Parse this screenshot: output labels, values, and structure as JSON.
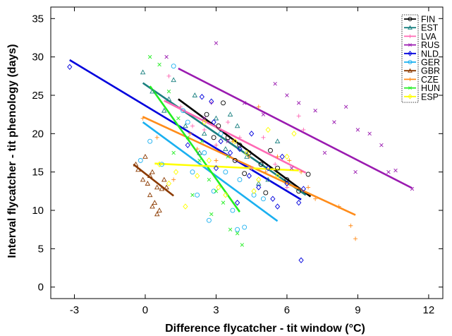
{
  "chart_data": {
    "type": "scatter",
    "xlabel": "Difference flycatcher - tit window (°C)",
    "ylabel": "Interval flycatcher - tit phenology (days)",
    "xlim": [
      -4,
      12.6
    ],
    "ylim": [
      -1.5,
      36.5
    ],
    "xticks": [
      "-3",
      "0",
      "3",
      "6",
      "9",
      "12"
    ],
    "yticks": [
      "0",
      "5",
      "10",
      "15",
      "20",
      "25",
      "30",
      "35"
    ],
    "grid": false,
    "legend_position": "top-right",
    "series": [
      {
        "name": "FIN",
        "color": "#000000",
        "marker": "circle",
        "line": [
          [
            1.4,
            24.5
          ],
          [
            7.0,
            11.8
          ]
        ],
        "points": [
          [
            2.6,
            22.5
          ],
          [
            3.1,
            21.0
          ],
          [
            3.5,
            19.5
          ],
          [
            4.0,
            18.5
          ],
          [
            4.4,
            17.5
          ],
          [
            4.9,
            16.0
          ],
          [
            5.3,
            17.8
          ],
          [
            5.6,
            15.5
          ],
          [
            6.0,
            14.0
          ],
          [
            6.5,
            12.5
          ],
          [
            6.9,
            14.7
          ],
          [
            3.3,
            24.0
          ],
          [
            4.2,
            14.8
          ],
          [
            5.1,
            12.3
          ],
          [
            2.9,
            19.5
          ],
          [
            3.8,
            16.5
          ]
        ]
      },
      {
        "name": "EST",
        "color": "#1a8080",
        "marker": "triangle",
        "line": [
          [
            -0.1,
            26.6
          ],
          [
            6.8,
            12.0
          ]
        ],
        "points": [
          [
            0.3,
            25.5
          ],
          [
            0.8,
            23.0
          ],
          [
            1.2,
            27.0
          ],
          [
            1.7,
            21.0
          ],
          [
            2.1,
            25.0
          ],
          [
            2.5,
            20.0
          ],
          [
            3.0,
            22.0
          ],
          [
            3.4,
            18.0
          ],
          [
            3.9,
            21.0
          ],
          [
            4.3,
            17.0
          ],
          [
            4.8,
            13.5
          ],
          [
            5.2,
            14.0
          ],
          [
            -0.1,
            28.0
          ],
          [
            1.0,
            24.5
          ],
          [
            3.6,
            22.5
          ],
          [
            2.3,
            17.5
          ],
          [
            5.6,
            19.0
          ]
        ]
      },
      {
        "name": "LVA",
        "color": "#ff69b4",
        "marker": "plus",
        "line": [
          [
            0.8,
            24.3
          ],
          [
            6.8,
            14.9
          ]
        ],
        "points": [
          [
            1.0,
            27.5
          ],
          [
            1.5,
            23.5
          ],
          [
            2.0,
            21.0
          ],
          [
            2.5,
            20.5
          ],
          [
            3.0,
            18.5
          ],
          [
            3.5,
            21.5
          ],
          [
            4.0,
            19.5
          ],
          [
            4.5,
            15.5
          ],
          [
            5.0,
            19.5
          ],
          [
            5.5,
            16.0
          ],
          [
            6.0,
            13.0
          ],
          [
            6.5,
            22.3
          ],
          [
            6.7,
            20.5
          ],
          [
            2.8,
            24.0
          ]
        ]
      },
      {
        "name": "RUS",
        "color": "#9a1ab0",
        "marker": "x",
        "line": [
          [
            1.4,
            28.5
          ],
          [
            11.3,
            12.9
          ]
        ],
        "points": [
          [
            0.9,
            30.0
          ],
          [
            2.5,
            22.0
          ],
          [
            3.0,
            31.8
          ],
          [
            3.5,
            19.0
          ],
          [
            4.2,
            24.0
          ],
          [
            5.0,
            22.5
          ],
          [
            5.5,
            26.5
          ],
          [
            6.0,
            25.0
          ],
          [
            6.5,
            24.0
          ],
          [
            7.2,
            23.0
          ],
          [
            8.0,
            21.5
          ],
          [
            8.5,
            23.5
          ],
          [
            9.0,
            20.5
          ],
          [
            9.5,
            20.0
          ],
          [
            10.0,
            18.5
          ],
          [
            10.3,
            15.0
          ],
          [
            10.6,
            15.2
          ],
          [
            11.3,
            12.8
          ],
          [
            7.6,
            17.5
          ],
          [
            6.2,
            15.5
          ],
          [
            8.9,
            15.0
          ]
        ]
      },
      {
        "name": "NLD",
        "color": "#0000dd",
        "marker": "diamond",
        "line": [
          [
            -3.2,
            29.6
          ],
          [
            6.6,
            11.4
          ]
        ],
        "points": [
          [
            -3.2,
            28.7
          ],
          [
            2.4,
            24.8
          ],
          [
            2.9,
            21.5
          ],
          [
            3.2,
            19.0
          ],
          [
            3.6,
            17.5
          ],
          [
            4.0,
            18.0
          ],
          [
            4.4,
            14.5
          ],
          [
            4.8,
            13.0
          ],
          [
            5.2,
            15.5
          ],
          [
            5.6,
            10.5
          ],
          [
            6.0,
            13.5
          ],
          [
            6.5,
            11.0
          ],
          [
            6.6,
            3.5
          ],
          [
            3.9,
            11.0
          ],
          [
            2.8,
            24.2
          ],
          [
            4.5,
            20.0
          ],
          [
            5.8,
            17.0
          ],
          [
            1.8,
            18.5
          ],
          [
            3.0,
            15.5
          ],
          [
            5.4,
            11.5
          ],
          [
            6.7,
            12.8
          ]
        ]
      },
      {
        "name": "GER",
        "color": "#1ab0f0",
        "marker": "circle",
        "line": [
          [
            -0.1,
            21.5
          ],
          [
            5.6,
            8.6
          ]
        ],
        "points": [
          [
            -0.2,
            16.5
          ],
          [
            0.2,
            19.0
          ],
          [
            0.7,
            16.0
          ],
          [
            1.2,
            28.8
          ],
          [
            1.6,
            23.0
          ],
          [
            2.0,
            15.0
          ],
          [
            2.5,
            17.5
          ],
          [
            2.9,
            12.5
          ],
          [
            3.4,
            15.0
          ],
          [
            3.7,
            10.0
          ],
          [
            4.0,
            14.0
          ],
          [
            4.2,
            7.8
          ],
          [
            4.6,
            12.0
          ],
          [
            5.0,
            11.5
          ],
          [
            2.7,
            8.7
          ],
          [
            3.9,
            7.5
          ],
          [
            2.2,
            12.0
          ],
          [
            1.8,
            21.5
          ],
          [
            3.2,
            20.0
          ]
        ]
      },
      {
        "name": "GBR",
        "color": "#8b3a00",
        "marker": "triangle",
        "line": [
          [
            -0.5,
            16.0
          ],
          [
            1.2,
            11.9
          ]
        ],
        "points": [
          [
            -0.4,
            16.0
          ],
          [
            -0.3,
            15.3
          ],
          [
            -0.1,
            14.0
          ],
          [
            0.0,
            17.0
          ],
          [
            0.1,
            13.5
          ],
          [
            0.2,
            12.0
          ],
          [
            0.3,
            15.0
          ],
          [
            0.4,
            11.0
          ],
          [
            0.5,
            13.0
          ],
          [
            0.6,
            10.0
          ],
          [
            0.7,
            12.8
          ],
          [
            0.8,
            14.0
          ],
          [
            0.9,
            13.0
          ],
          [
            0.3,
            10.5
          ],
          [
            0.5,
            9.5
          ],
          [
            0.2,
            14.5
          ]
        ]
      },
      {
        "name": "CZE",
        "color": "#ff8c1a",
        "marker": "plus",
        "line": [
          [
            -0.1,
            22.2
          ],
          [
            8.9,
            9.4
          ]
        ],
        "points": [
          [
            -0.1,
            22.0
          ],
          [
            0.5,
            19.5
          ],
          [
            1.2,
            14.0
          ],
          [
            2.2,
            18.0
          ],
          [
            3.0,
            16.5
          ],
          [
            3.7,
            19.0
          ],
          [
            4.4,
            17.0
          ],
          [
            5.1,
            15.0
          ],
          [
            5.6,
            17.0
          ],
          [
            6.1,
            16.5
          ],
          [
            6.6,
            15.0
          ],
          [
            7.2,
            11.5
          ],
          [
            8.2,
            10.5
          ],
          [
            8.7,
            8.0
          ],
          [
            8.9,
            6.3
          ],
          [
            6.9,
            13.0
          ],
          [
            4.8,
            23.5
          ],
          [
            1.9,
            20.0
          ]
        ]
      },
      {
        "name": "HUN",
        "color": "#22ee22",
        "marker": "x",
        "line": [
          [
            0.2,
            26.2
          ],
          [
            4.0,
            9.8
          ]
        ],
        "points": [
          [
            0.2,
            30.0
          ],
          [
            0.6,
            29.0
          ],
          [
            1.0,
            25.5
          ],
          [
            1.4,
            22.0
          ],
          [
            1.8,
            19.5
          ],
          [
            2.0,
            12.0
          ],
          [
            2.3,
            16.5
          ],
          [
            2.7,
            14.0
          ],
          [
            3.0,
            12.5
          ],
          [
            3.3,
            11.0
          ],
          [
            3.6,
            7.5
          ],
          [
            3.9,
            7.0
          ],
          [
            4.1,
            5.5
          ],
          [
            2.4,
            19.0
          ],
          [
            1.2,
            17.5
          ],
          [
            3.5,
            17.0
          ],
          [
            2.8,
            9.5
          ]
        ]
      },
      {
        "name": "ESP",
        "color": "#ffff00",
        "marker": "diamond",
        "line": [
          [
            0.4,
            16.1
          ],
          [
            6.5,
            15.2
          ]
        ],
        "points": [
          [
            0.6,
            16.0
          ],
          [
            1.0,
            13.5
          ],
          [
            1.7,
            10.5
          ],
          [
            2.2,
            14.5
          ],
          [
            2.7,
            16.5
          ],
          [
            3.1,
            13.0
          ],
          [
            3.4,
            12.0
          ],
          [
            3.8,
            19.0
          ],
          [
            4.3,
            17.5
          ],
          [
            4.8,
            14.0
          ],
          [
            5.2,
            20.5
          ],
          [
            5.6,
            14.5
          ],
          [
            6.0,
            17.0
          ],
          [
            6.3,
            20.0
          ],
          [
            2.5,
            21.5
          ],
          [
            4.6,
            12.5
          ],
          [
            1.3,
            15.0
          ]
        ]
      }
    ]
  }
}
